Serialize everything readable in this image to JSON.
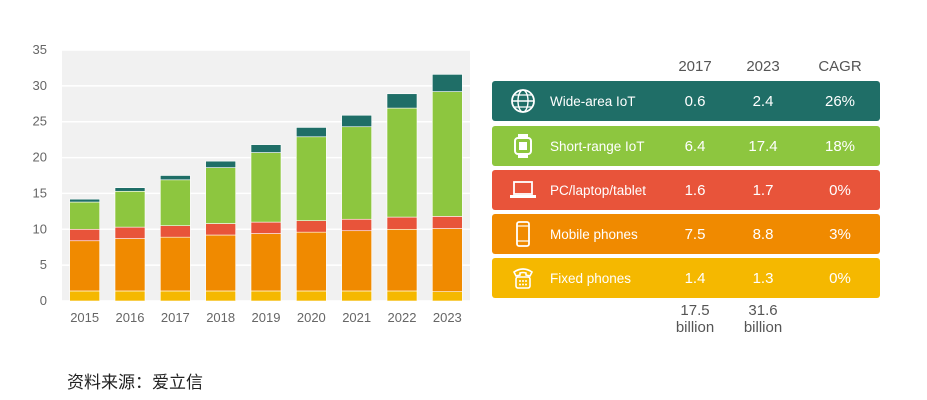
{
  "chart_data": {
    "type": "bar",
    "stacked": true,
    "categories": [
      "2015",
      "2016",
      "2017",
      "2018",
      "2019",
      "2020",
      "2021",
      "2022",
      "2023"
    ],
    "ylim": [
      0,
      35
    ],
    "yticks": [
      0,
      5,
      10,
      15,
      20,
      25,
      30,
      35
    ],
    "grid": true,
    "series": [
      {
        "name": "Fixed phones",
        "color": "#f5b800",
        "values": [
          1.4,
          1.4,
          1.4,
          1.4,
          1.4,
          1.4,
          1.4,
          1.4,
          1.3
        ]
      },
      {
        "name": "Mobile phones",
        "color": "#f08a00",
        "values": [
          7.0,
          7.3,
          7.5,
          7.8,
          8.0,
          8.2,
          8.4,
          8.6,
          8.8
        ]
      },
      {
        "name": "PC/laptop/tablet",
        "color": "#e8543a",
        "values": [
          1.6,
          1.6,
          1.6,
          1.6,
          1.6,
          1.6,
          1.6,
          1.7,
          1.7
        ]
      },
      {
        "name": "Short-range IoT",
        "color": "#8dc63f",
        "values": [
          3.8,
          5.0,
          6.4,
          7.8,
          9.7,
          11.7,
          12.9,
          15.2,
          17.4
        ]
      },
      {
        "name": "Wide-area IoT",
        "color": "#1f6e67",
        "values": [
          0.4,
          0.5,
          0.6,
          0.9,
          1.1,
          1.3,
          1.6,
          2.0,
          2.4
        ]
      }
    ]
  },
  "table": {
    "headers": [
      "2017",
      "2023",
      "CAGR"
    ],
    "rows": [
      {
        "icon": "globe-icon",
        "label": "Wide-area IoT",
        "v2017": "0.6",
        "v2023": "2.4",
        "cagr": "26%",
        "color": "#1f6e67"
      },
      {
        "icon": "smartwatch-icon",
        "label": "Short-range IoT",
        "v2017": "6.4",
        "v2023": "17.4",
        "cagr": "18%",
        "color": "#8dc63f"
      },
      {
        "icon": "laptop-icon",
        "label": "PC/laptop/tablet",
        "v2017": "1.6",
        "v2023": "1.7",
        "cagr": "0%",
        "color": "#e8543a"
      },
      {
        "icon": "mobile-phone-icon",
        "label": "Mobile phones",
        "v2017": "7.5",
        "v2023": "8.8",
        "cagr": "3%",
        "color": "#f08a00"
      },
      {
        "icon": "fixed-phone-icon",
        "label": "Fixed phones",
        "v2017": "1.4",
        "v2023": "1.3",
        "cagr": "0%",
        "color": "#f5b800"
      }
    ],
    "totals": {
      "t2017_value": "17.5",
      "t2017_unit": "billion",
      "t2023_value": "31.6",
      "t2023_unit": "billion"
    }
  },
  "source": "资料来源：爱立信"
}
